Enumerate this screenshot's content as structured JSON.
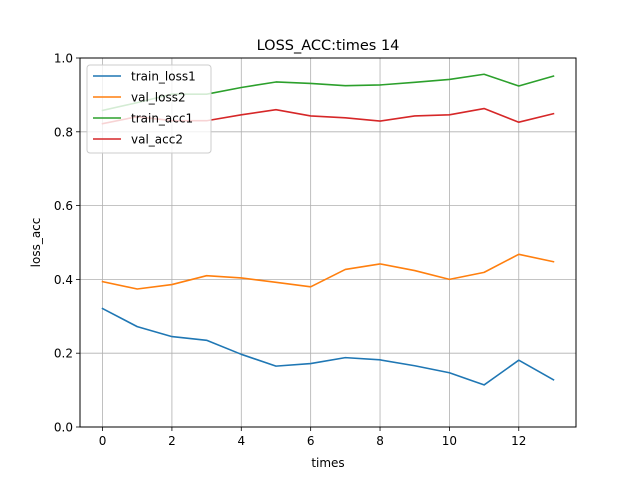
{
  "chart_data": {
    "type": "line",
    "title": "LOSS_ACC:times 14",
    "xlabel": "times",
    "ylabel": "loss_acc",
    "x": [
      0,
      1,
      2,
      3,
      4,
      5,
      6,
      7,
      8,
      9,
      10,
      11,
      12,
      13
    ],
    "xlim": [
      -0.65,
      13.65
    ],
    "ylim": [
      0.0,
      1.0
    ],
    "xticks": [
      0,
      2,
      4,
      6,
      8,
      10,
      12
    ],
    "yticks": [
      0.0,
      0.2,
      0.4,
      0.6,
      0.8,
      1.0
    ],
    "xtick_labels": [
      "0",
      "2",
      "4",
      "6",
      "8",
      "10",
      "12"
    ],
    "ytick_labels": [
      "0.0",
      "0.2",
      "0.4",
      "0.6",
      "0.8",
      "1.0"
    ],
    "grid": true,
    "legend_position": "top-left",
    "series": [
      {
        "name": "train_loss1",
        "color": "#1f77b4",
        "values": [
          0.321,
          0.272,
          0.245,
          0.235,
          0.197,
          0.165,
          0.172,
          0.188,
          0.182,
          0.166,
          0.147,
          0.114,
          0.181,
          0.128
        ]
      },
      {
        "name": "val_loss2",
        "color": "#ff7f0e",
        "values": [
          0.394,
          0.374,
          0.386,
          0.41,
          0.404,
          0.392,
          0.38,
          0.427,
          0.442,
          0.424,
          0.4,
          0.419,
          0.468,
          0.448
        ]
      },
      {
        "name": "train_acc1",
        "color": "#2ca02c",
        "values": [
          0.858,
          0.879,
          0.902,
          0.902,
          0.92,
          0.935,
          0.931,
          0.925,
          0.927,
          0.934,
          0.942,
          0.956,
          0.924,
          0.951
        ]
      },
      {
        "name": "val_acc2",
        "color": "#d62728",
        "values": [
          0.822,
          0.841,
          0.83,
          0.83,
          0.846,
          0.86,
          0.843,
          0.838,
          0.829,
          0.843,
          0.846,
          0.863,
          0.826,
          0.849
        ]
      }
    ]
  }
}
